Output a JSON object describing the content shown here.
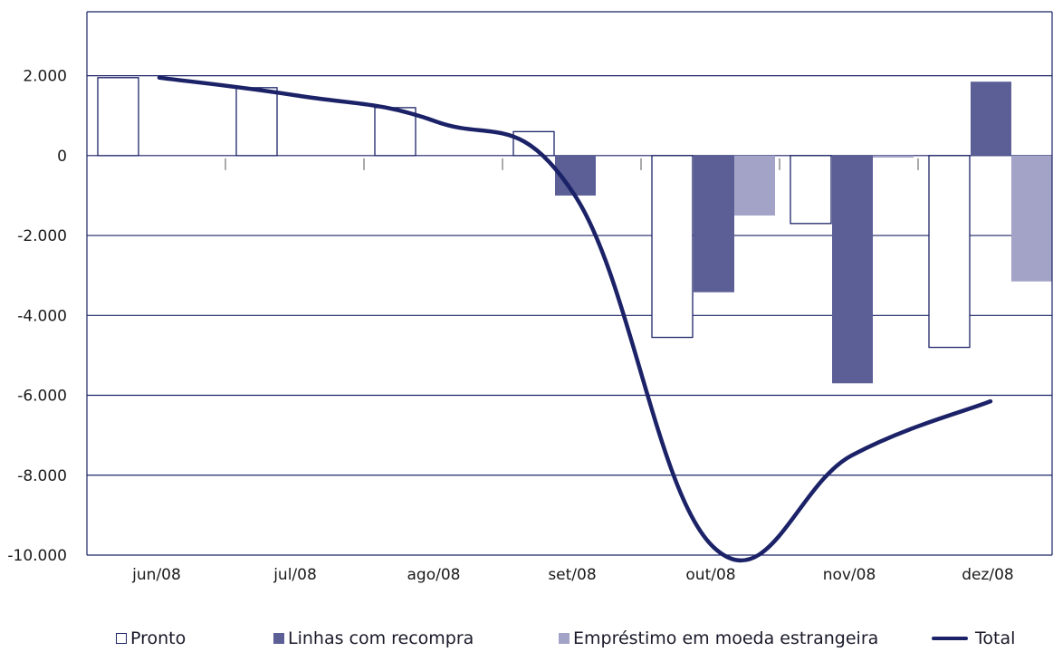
{
  "colors": {
    "axis": "#1c2467",
    "pronto_fill": "#ffffff",
    "pronto_stroke": "#1c2467",
    "linhas": "#5b5f96",
    "emprestimo": "#a2a3c6",
    "total": "#1b2267",
    "grid": "#1c2467"
  },
  "chart_data": {
    "type": "bar",
    "categories": [
      "jun/08",
      "jul/08",
      "ago/08",
      "set/08",
      "out/08",
      "nov/08",
      "dez/08"
    ],
    "series": [
      {
        "name": "Pronto",
        "type": "bar",
        "values": [
          1950,
          1700,
          1200,
          600,
          -4550,
          -1700,
          -4800
        ]
      },
      {
        "name": "Linhas com recompra",
        "type": "bar",
        "values": [
          0,
          0,
          0,
          -1000,
          -3420,
          -5700,
          1850
        ]
      },
      {
        "name": "Empréstimo em moeda estrangeira",
        "type": "bar",
        "values": [
          0,
          0,
          0,
          0,
          -1500,
          -50,
          -3150
        ]
      },
      {
        "name": "Total",
        "type": "line",
        "values": [
          1950,
          1500,
          850,
          -1000,
          -9800,
          -7500,
          -6150
        ]
      }
    ],
    "ylim": [
      -10000,
      3600
    ],
    "yticks": [
      2000,
      0,
      -2000,
      -4000,
      -6000,
      -8000,
      -10000
    ],
    "ytick_labels": [
      "2.000",
      "0",
      "-2.000",
      "-4.000",
      "-6.000",
      "-8.000",
      "-10.000"
    ],
    "grid": true,
    "legend_position": "bottom",
    "title": "",
    "xlabel": "",
    "ylabel": ""
  }
}
